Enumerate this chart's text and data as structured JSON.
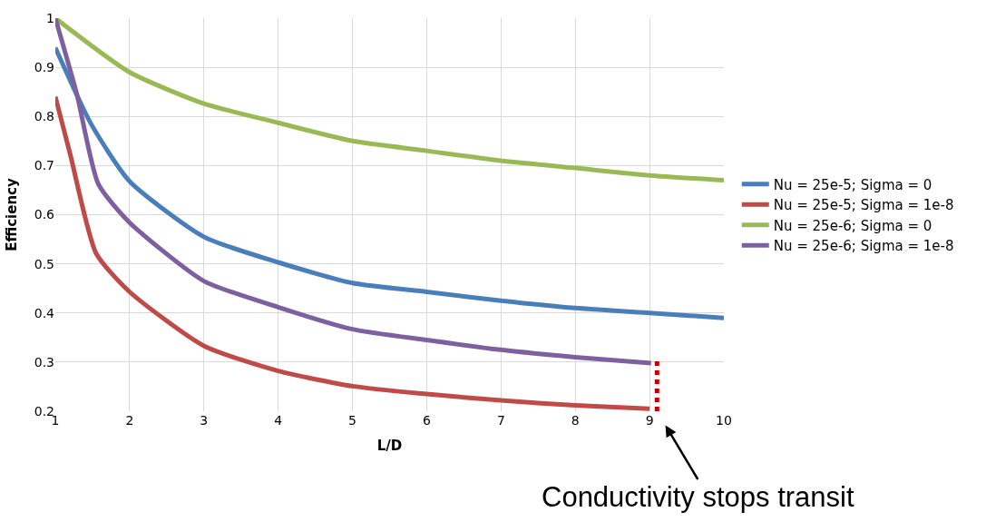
{
  "chart_data": {
    "type": "line",
    "xlabel": "L/D",
    "ylabel": "Efficiency",
    "xlim": [
      1,
      10
    ],
    "xticks": [
      1,
      2,
      3,
      4,
      5,
      6,
      7,
      8,
      9,
      10
    ],
    "ylim": [
      0.2,
      1
    ],
    "yticks": [
      0.2,
      0.3,
      0.4,
      0.5,
      0.6,
      0.7,
      0.8,
      0.9,
      1
    ],
    "grid": true,
    "legend": "right",
    "marker": "none",
    "line_style": "solid",
    "series": [
      {
        "name": "Nu = 25e-5; Sigma = 0",
        "color": "#4a7ebb",
        "x": [
          1,
          1.48,
          2,
          3,
          4,
          5,
          6,
          7,
          8,
          9,
          10
        ],
        "values": [
          0.94,
          0.785,
          0.668,
          0.555,
          0.503,
          0.461,
          0.443,
          0.425,
          0.41,
          0.4,
          0.39
        ]
      },
      {
        "name": "Nu = 25e-5; Sigma = 1e-8",
        "color": "#be4b48",
        "x": [
          1,
          1.2,
          1.55,
          2,
          3,
          4,
          5,
          6,
          7,
          8,
          9
        ],
        "values": [
          0.84,
          0.723,
          0.521,
          0.443,
          0.333,
          0.282,
          0.251,
          0.235,
          0.222,
          0.212,
          0.205
        ]
      },
      {
        "name": "Nu = 25e-6; Sigma = 0",
        "color": "#98b954",
        "x": [
          1,
          2,
          3,
          4,
          5,
          6,
          7,
          8,
          9,
          10
        ],
        "values": [
          1.0,
          0.89,
          0.826,
          0.787,
          0.75,
          0.73,
          0.71,
          0.695,
          0.68,
          0.67
        ]
      },
      {
        "name": "Nu = 25e-6; Sigma = 1e-8",
        "color": "#7d60a0",
        "x": [
          1,
          1.29,
          1.58,
          2,
          3,
          4,
          5,
          6,
          7,
          8,
          9.02
        ],
        "values": [
          1.0,
          0.845,
          0.662,
          0.584,
          0.465,
          0.412,
          0.367,
          0.345,
          0.325,
          0.31,
          0.298
        ]
      }
    ],
    "ref_lines": [
      {
        "axis": "x",
        "value": 9.1,
        "color": "#c00000",
        "line_style": "dotted"
      }
    ],
    "annotations": [
      "Conductivity stops transit"
    ]
  }
}
